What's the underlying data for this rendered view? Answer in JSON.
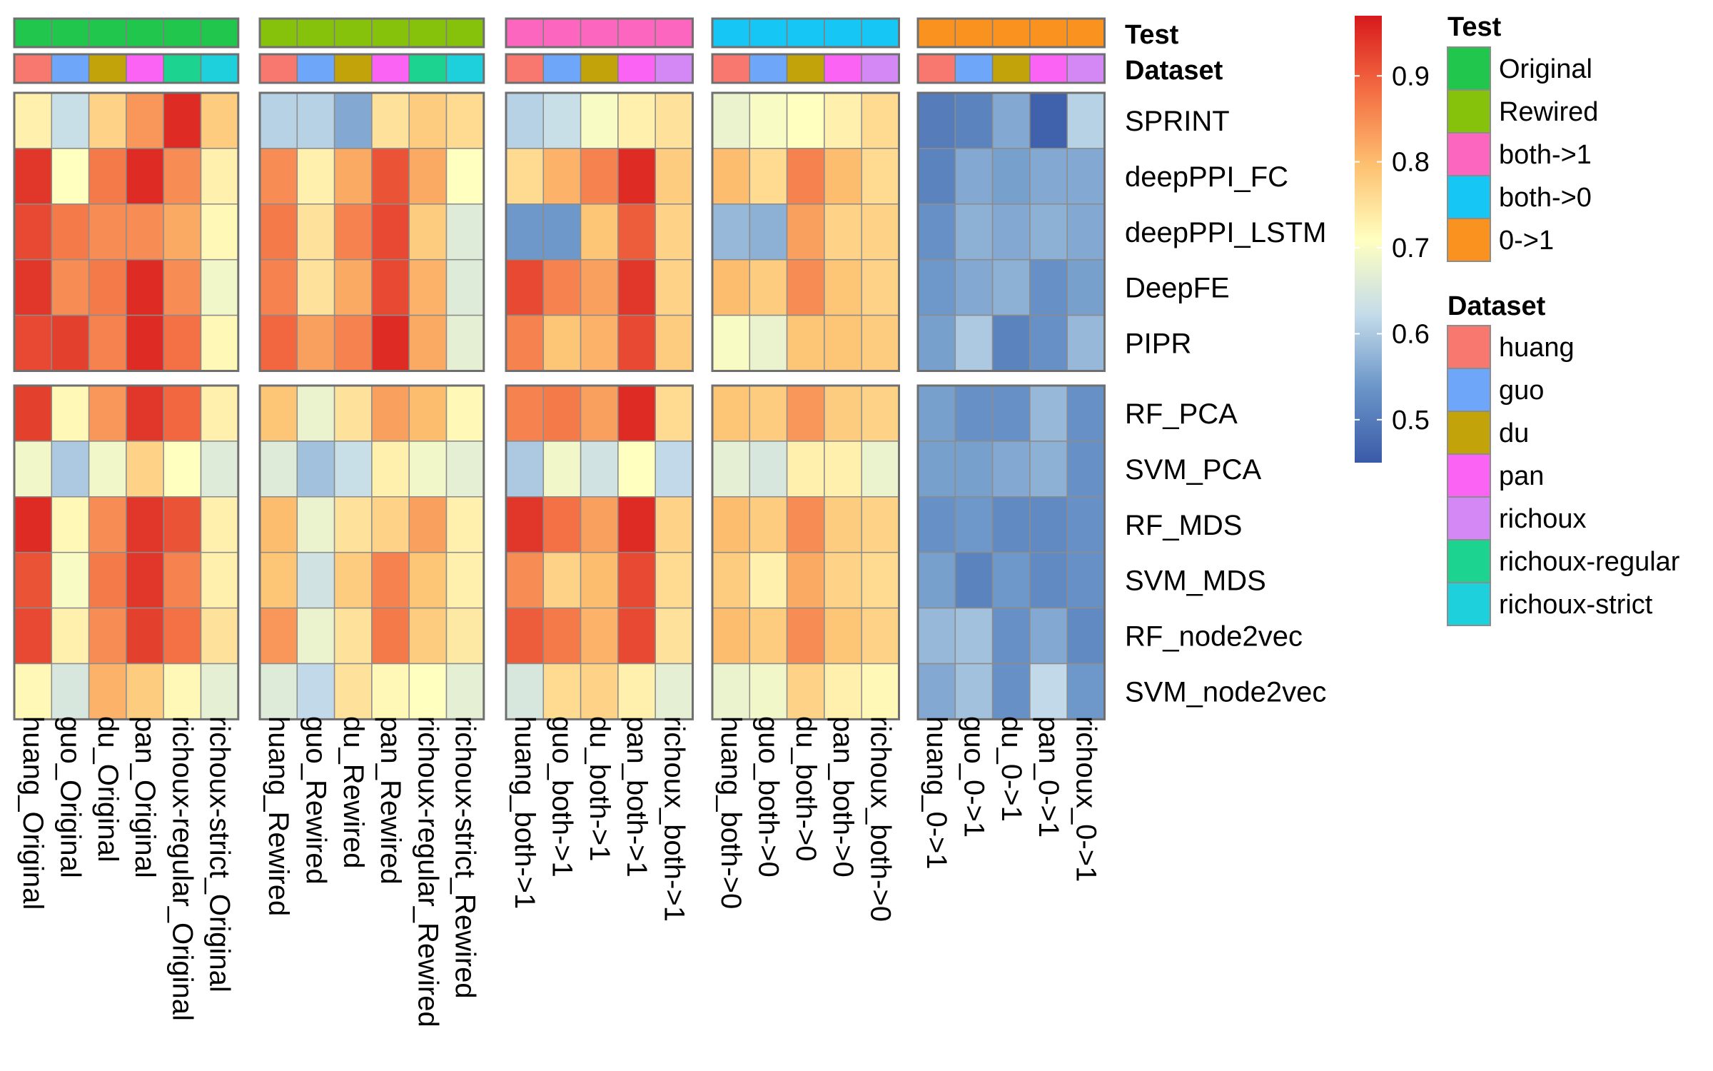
{
  "chart_data": {
    "type": "heatmap",
    "title": "",
    "colorscale": {
      "min": 0.45,
      "max": 0.97,
      "ticks": [
        0.5,
        0.6,
        0.7,
        0.8,
        0.9
      ],
      "tick_labels": [
        "0.5",
        "0.6",
        "0.7",
        "0.8",
        "0.9"
      ],
      "colors": [
        "#3a5aa8",
        "#6a95c8",
        "#c5dcea",
        "#ffffbf",
        "#fdc070",
        "#f46d43",
        "#d7191c"
      ]
    },
    "annotation_labels": [
      "Test",
      "Dataset"
    ],
    "row_groups": [
      [
        "SPRINT",
        "deepPPI_FC",
        "deepPPI_LSTM",
        "DeepFE",
        "PIPR"
      ],
      [
        "RF_PCA",
        "SVM_PCA",
        "RF_MDS",
        "SVM_MDS",
        "RF_node2vec",
        "SVM_node2vec"
      ]
    ],
    "column_groups": [
      {
        "test": "Original",
        "datasets": [
          "huang",
          "guo",
          "du",
          "pan",
          "richoux-regular",
          "richoux-strict"
        ],
        "labels": [
          "huang_Original",
          "guo_Original",
          "du_Original",
          "pan_Original",
          "richoux-regular_Original",
          "richoux-strict_Original"
        ]
      },
      {
        "test": "Rewired",
        "datasets": [
          "huang",
          "guo",
          "du",
          "pan",
          "richoux-regular",
          "richoux-strict"
        ],
        "labels": [
          "huang_Rewired",
          "guo_Rewired",
          "du_Rewired",
          "pan_Rewired",
          "richoux-regular_Rewired",
          "richoux-strict_Rewired"
        ]
      },
      {
        "test": "both->1",
        "datasets": [
          "huang",
          "guo",
          "du",
          "pan",
          "richoux"
        ],
        "labels": [
          "huang_both->1",
          "guo_both->1",
          "du_both->1",
          "pan_both->1",
          "richoux_both->1"
        ]
      },
      {
        "test": "both->0",
        "datasets": [
          "huang",
          "guo",
          "du",
          "pan",
          "richoux"
        ],
        "labels": [
          "huang_both->0",
          "guo_both->0",
          "du_both->0",
          "pan_both->0",
          "richoux_both->0"
        ]
      },
      {
        "test": "0->1",
        "datasets": [
          "huang",
          "guo",
          "du",
          "pan",
          "richoux"
        ],
        "labels": [
          "huang_0->1",
          "guo_0->1",
          "du_0->1",
          "pan_0->1",
          "richoux_0->1"
        ]
      }
    ],
    "values": [
      [
        [
          0.73,
          0.63,
          0.77,
          0.84,
          0.95,
          0.78
        ],
        [
          0.94,
          0.71,
          0.87,
          0.95,
          0.85,
          0.73
        ],
        [
          0.92,
          0.87,
          0.85,
          0.85,
          0.82,
          0.72
        ],
        [
          0.94,
          0.85,
          0.87,
          0.95,
          0.85,
          0.69
        ],
        [
          0.92,
          0.93,
          0.86,
          0.95,
          0.88,
          0.72
        ],
        [
          0.93,
          0.72,
          0.84,
          0.94,
          0.89,
          0.73
        ],
        [
          0.69,
          0.6,
          0.69,
          0.77,
          0.71,
          0.66
        ],
        [
          0.95,
          0.72,
          0.85,
          0.94,
          0.91,
          0.73
        ],
        [
          0.91,
          0.7,
          0.87,
          0.94,
          0.86,
          0.73
        ],
        [
          0.92,
          0.73,
          0.85,
          0.93,
          0.88,
          0.75
        ],
        [
          0.72,
          0.65,
          0.81,
          0.78,
          0.72,
          0.67
        ]
      ],
      [
        [
          0.61,
          0.61,
          0.56,
          0.75,
          0.78,
          0.76
        ],
        [
          0.85,
          0.73,
          0.82,
          0.91,
          0.82,
          0.71
        ],
        [
          0.87,
          0.75,
          0.86,
          0.92,
          0.78,
          0.66
        ],
        [
          0.86,
          0.75,
          0.82,
          0.92,
          0.81,
          0.66
        ],
        [
          0.89,
          0.83,
          0.86,
          0.95,
          0.82,
          0.67
        ],
        [
          0.79,
          0.68,
          0.75,
          0.83,
          0.8,
          0.72
        ],
        [
          0.66,
          0.59,
          0.63,
          0.73,
          0.69,
          0.67
        ],
        [
          0.8,
          0.68,
          0.75,
          0.77,
          0.83,
          0.73
        ],
        [
          0.79,
          0.64,
          0.78,
          0.86,
          0.79,
          0.73
        ],
        [
          0.84,
          0.68,
          0.75,
          0.87,
          0.78,
          0.74
        ],
        [
          0.66,
          0.62,
          0.75,
          0.72,
          0.71,
          0.67
        ]
      ],
      [
        [
          0.61,
          0.63,
          0.7,
          0.73,
          0.75
        ],
        [
          0.76,
          0.81,
          0.86,
          0.95,
          0.78
        ],
        [
          0.54,
          0.54,
          0.79,
          0.9,
          0.77
        ],
        [
          0.92,
          0.86,
          0.83,
          0.94,
          0.77
        ],
        [
          0.86,
          0.79,
          0.81,
          0.92,
          0.78
        ],
        [
          0.86,
          0.87,
          0.83,
          0.95,
          0.76
        ],
        [
          0.6,
          0.69,
          0.64,
          0.71,
          0.62
        ],
        [
          0.94,
          0.88,
          0.83,
          0.95,
          0.77
        ],
        [
          0.85,
          0.77,
          0.8,
          0.92,
          0.76
        ],
        [
          0.9,
          0.87,
          0.81,
          0.92,
          0.75
        ],
        [
          0.65,
          0.76,
          0.77,
          0.73,
          0.67
        ]
      ],
      [
        [
          0.68,
          0.7,
          0.71,
          0.73,
          0.76
        ],
        [
          0.8,
          0.76,
          0.86,
          0.8,
          0.76
        ],
        [
          0.58,
          0.57,
          0.83,
          0.77,
          0.77
        ],
        [
          0.8,
          0.78,
          0.85,
          0.79,
          0.77
        ],
        [
          0.7,
          0.68,
          0.79,
          0.79,
          0.78
        ],
        [
          0.79,
          0.78,
          0.84,
          0.78,
          0.77
        ],
        [
          0.67,
          0.65,
          0.73,
          0.73,
          0.68
        ],
        [
          0.8,
          0.78,
          0.85,
          0.78,
          0.77
        ],
        [
          0.78,
          0.73,
          0.82,
          0.77,
          0.76
        ],
        [
          0.8,
          0.78,
          0.85,
          0.79,
          0.77
        ],
        [
          0.68,
          0.69,
          0.77,
          0.73,
          0.72
        ]
      ],
      [
        [
          0.5,
          0.51,
          0.56,
          0.46,
          0.61
        ],
        [
          0.51,
          0.56,
          0.55,
          0.56,
          0.56
        ],
        [
          0.53,
          0.57,
          0.56,
          0.57,
          0.56
        ],
        [
          0.54,
          0.56,
          0.57,
          0.53,
          0.55
        ],
        [
          0.55,
          0.6,
          0.51,
          0.53,
          0.58
        ],
        [
          0.55,
          0.53,
          0.53,
          0.58,
          0.53
        ],
        [
          0.55,
          0.55,
          0.56,
          0.57,
          0.53
        ],
        [
          0.53,
          0.54,
          0.52,
          0.52,
          0.53
        ],
        [
          0.55,
          0.51,
          0.54,
          0.52,
          0.53
        ],
        [
          0.58,
          0.59,
          0.53,
          0.56,
          0.52
        ],
        [
          0.56,
          0.59,
          0.53,
          0.62,
          0.54
        ]
      ]
    ],
    "legends": {
      "test": {
        "title": "Test",
        "items": [
          {
            "label": "Original",
            "color": "#21c64c"
          },
          {
            "label": "Rewired",
            "color": "#86c20b"
          },
          {
            "label": "both->1",
            "color": "#fc66be"
          },
          {
            "label": "both->0",
            "color": "#16c6f5"
          },
          {
            "label": "0->1",
            "color": "#fa921f"
          }
        ]
      },
      "dataset": {
        "title": "Dataset",
        "items": [
          {
            "label": "huang",
            "color": "#f8786f"
          },
          {
            "label": "guo",
            "color": "#6ea6fa"
          },
          {
            "label": "du",
            "color": "#c2a40a"
          },
          {
            "label": "pan",
            "color": "#fa63f4"
          },
          {
            "label": "richoux",
            "color": "#d488f6"
          },
          {
            "label": "richoux-regular",
            "color": "#1cd48f"
          },
          {
            "label": "richoux-strict",
            "color": "#1ecfdc"
          }
        ]
      }
    }
  }
}
